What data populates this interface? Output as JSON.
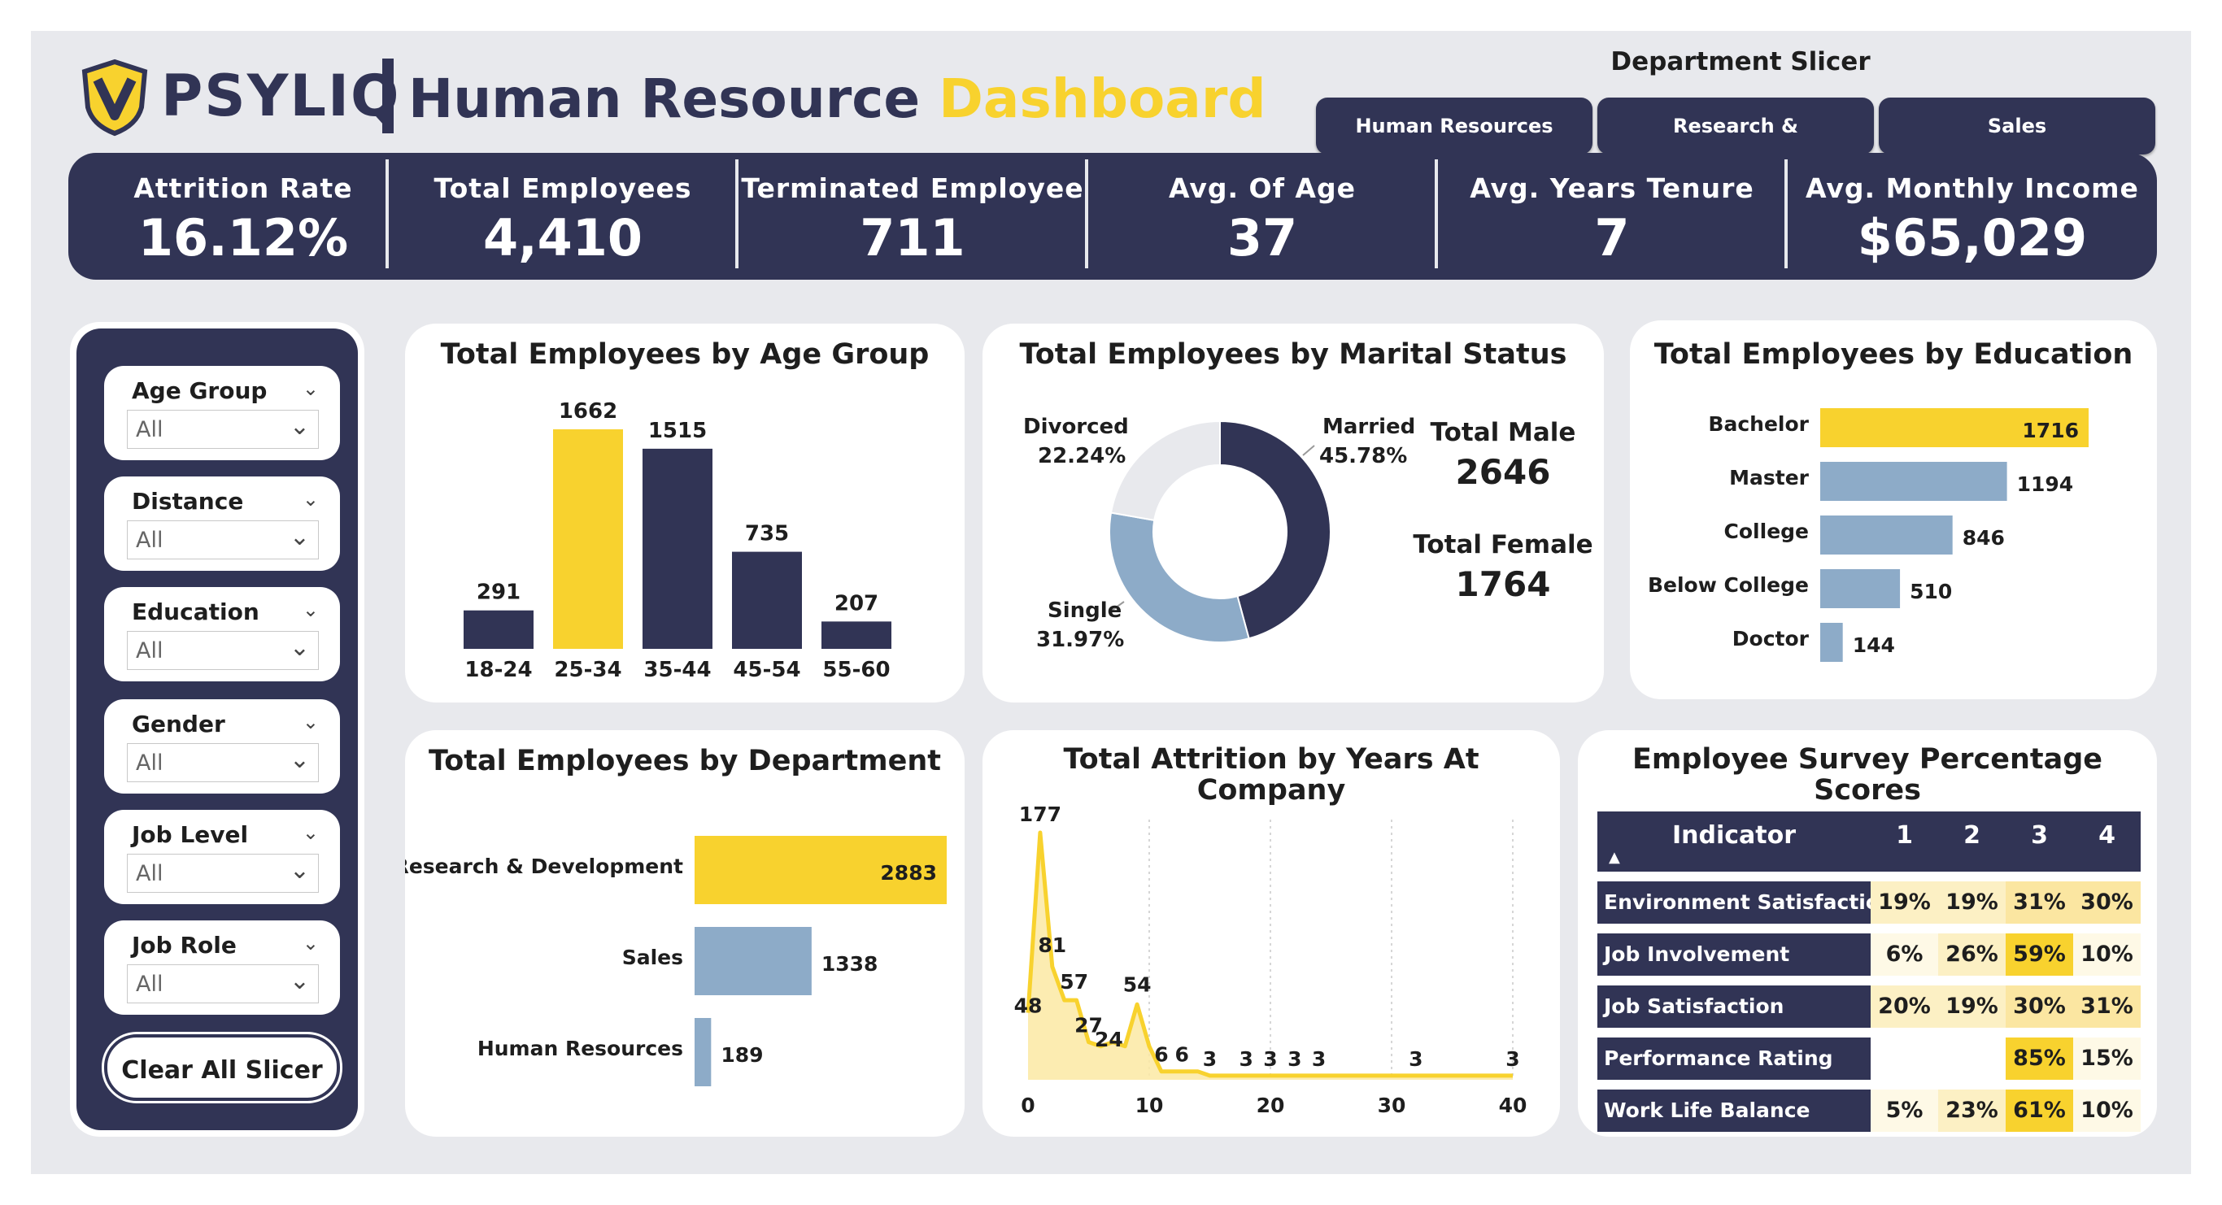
{
  "header": {
    "logo_text": "PSYLIQ",
    "title_part1": "Human Resource",
    "title_part2": "Dashboard"
  },
  "dept_slicer": {
    "title": "Department Slicer",
    "buttons": [
      "Human Resources",
      "Research & Development",
      "Sales"
    ]
  },
  "kpis": [
    {
      "label": "Attrition Rate",
      "value": "16.12%"
    },
    {
      "label": "Total Employees",
      "value": "4,410"
    },
    {
      "label": "Terminated Employee",
      "value": "711"
    },
    {
      "label": "Avg. Of Age",
      "value": "37"
    },
    {
      "label": "Avg. Years Tenure",
      "value": "7"
    },
    {
      "label": "Avg. Monthly Income",
      "value": "$65,029"
    }
  ],
  "filters": [
    {
      "label": "Age Group",
      "value": "All"
    },
    {
      "label": "Distance",
      "value": "All"
    },
    {
      "label": "Education",
      "value": "All"
    },
    {
      "label": "Gender",
      "value": "All"
    },
    {
      "label": "Job Level",
      "value": "All"
    },
    {
      "label": "Job Role",
      "value": "All"
    }
  ],
  "clear_button": "Clear All Slicer",
  "colors": {
    "navy": "#313455",
    "yellow": "#f8d22e",
    "blue": "#8dabc8",
    "light_gray": "#e8e9ed"
  },
  "age_chart": {
    "title": "Total Employees by Age Group",
    "value_labels": [
      "291",
      "1662",
      "1515",
      "735",
      "207"
    ]
  },
  "marital_chart": {
    "title": "Total Employees by Marital Status",
    "labels": [
      {
        "name": "Divorced",
        "pct": "22.24%"
      },
      {
        "name": "Married",
        "pct": "45.78%"
      },
      {
        "name": "Single",
        "pct": "31.97%"
      }
    ],
    "total_male_label": "Total Male",
    "total_male_value": "2646",
    "total_female_label": "Total Female",
    "total_female_value": "1764"
  },
  "education_chart": {
    "title": "Total Employees by Education",
    "value_labels": [
      "1716",
      "1194",
      "846",
      "510",
      "144"
    ]
  },
  "department_chart": {
    "title": "Total Employees by Department",
    "value_labels": [
      "2883",
      "1338",
      "189"
    ]
  },
  "attrition_chart": {
    "title_line1": "Total Attrition by Years At",
    "title_line2": "Company",
    "x_ticks": [
      "0",
      "10",
      "20",
      "30",
      "40"
    ],
    "point_labels": [
      "177",
      "81",
      "57",
      "48",
      "27",
      "24",
      "54",
      "6",
      "6",
      "3",
      "3",
      "3",
      "3",
      "3",
      "3",
      "3"
    ]
  },
  "survey": {
    "title_line1": "Employee Survey Percentage",
    "title_line2": "Scores",
    "header": [
      "Indicator",
      "1",
      "2",
      "3",
      "4"
    ],
    "rows": [
      {
        "indicator": "Environment Satisfaction",
        "v": [
          "19%",
          "19%",
          "31%",
          "30%"
        ]
      },
      {
        "indicator": "Job Involvement",
        "v": [
          "6%",
          "26%",
          "59%",
          "10%"
        ]
      },
      {
        "indicator": "Job Satisfaction",
        "v": [
          "20%",
          "19%",
          "30%",
          "31%"
        ]
      },
      {
        "indicator": "Performance Rating",
        "v": [
          "",
          "",
          "85%",
          "15%"
        ]
      },
      {
        "indicator": "Work Life Balance",
        "v": [
          "5%",
          "23%",
          "61%",
          "10%"
        ]
      }
    ]
  },
  "chart_data": [
    {
      "type": "bar",
      "title": "Total Employees by Age Group",
      "categories": [
        "18-24",
        "25-34",
        "35-44",
        "45-54",
        "55-60"
      ],
      "values": [
        291,
        1662,
        1515,
        735,
        207
      ]
    },
    {
      "type": "pie",
      "title": "Total Employees by Marital Status",
      "categories": [
        "Married",
        "Single",
        "Divorced"
      ],
      "values": [
        45.78,
        31.97,
        22.24
      ]
    },
    {
      "type": "bar",
      "title": "Total Employees by Education",
      "categories": [
        "Bachelor",
        "Master",
        "College",
        "Below College",
        "Doctor"
      ],
      "values": [
        1716,
        1194,
        846,
        510,
        144
      ]
    },
    {
      "type": "bar",
      "title": "Total Employees by Department",
      "categories": [
        "Research & Development",
        "Sales",
        "Human Resources"
      ],
      "values": [
        2883,
        1338,
        189
      ]
    },
    {
      "type": "area",
      "title": "Total Attrition by Years At Company",
      "x": [
        0,
        1,
        2,
        3,
        4,
        5,
        6,
        7,
        8,
        9,
        10,
        11,
        12,
        13,
        14,
        15,
        16,
        17,
        18,
        19,
        20,
        21,
        22,
        23,
        24,
        25,
        26,
        27,
        28,
        29,
        30,
        31,
        32,
        33,
        34,
        35,
        36,
        37,
        38,
        39,
        40
      ],
      "values": [
        48,
        177,
        81,
        57,
        57,
        27,
        24,
        27,
        24,
        54,
        24,
        6,
        6,
        6,
        6,
        3,
        3,
        3,
        3,
        3,
        3,
        3,
        3,
        3,
        3,
        3,
        3,
        3,
        3,
        3,
        3,
        3,
        3,
        3,
        3,
        3,
        3,
        3,
        3,
        3,
        3
      ],
      "xlim": [
        0,
        40
      ]
    }
  ]
}
